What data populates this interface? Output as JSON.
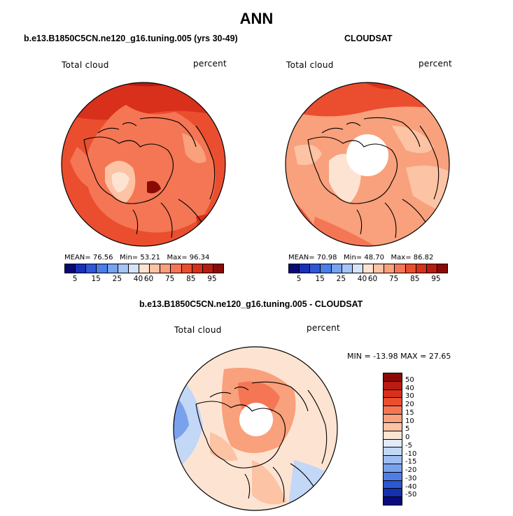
{
  "figure_title": "ANN",
  "panels": {
    "model": {
      "header": "b.e13.B1850C5CN.ne120_g16.tuning.005 (yrs 30-49)",
      "variable": "Total cloud",
      "units": "percent",
      "stats": {
        "mean_label": "MEAN=",
        "mean": "76.56",
        "min_label": "Min=",
        "min": "53.21",
        "max_label": "Max=",
        "max": "96.34"
      }
    },
    "obs": {
      "header": "CLOUDSAT",
      "variable": "Total cloud",
      "units": "percent",
      "stats": {
        "mean_label": "MEAN=",
        "mean": "70.98",
        "min_label": "Min=",
        "min": "48.70",
        "max_label": "Max=",
        "max": "86.82"
      }
    },
    "diff": {
      "header": "b.e13.B1850C5CN.ne120_g16.tuning.005 - CLOUDSAT",
      "variable": "Total cloud",
      "units": "percent",
      "minmax": "MIN = -13.98 MAX =  27.65"
    }
  },
  "abs_colorbar": {
    "tick_labels": [
      "5",
      "15",
      "25",
      "40",
      "60",
      "75",
      "85",
      "95"
    ],
    "colors": [
      "#08087a",
      "#1a2fb8",
      "#2e58d8",
      "#4a7ee8",
      "#77a3f0",
      "#a6c4f5",
      "#d4e4f9",
      "#fde4d2",
      "#fcc3a5",
      "#f9a07c",
      "#f47654",
      "#ea4e2f",
      "#d8301a",
      "#b81c10",
      "#8a0a06"
    ]
  },
  "diff_colorbar": {
    "tick_labels": [
      "50",
      "40",
      "30",
      "20",
      "15",
      "10",
      "5",
      "0",
      "-5",
      "-10",
      "-15",
      "-20",
      "-30",
      "-40",
      "-50"
    ],
    "colors": [
      "#8a0a06",
      "#b81c10",
      "#d8301a",
      "#ea4e2f",
      "#f47654",
      "#f9a07c",
      "#fcc3a5",
      "#fde4d2",
      "#e1ebfb",
      "#c3d7f7",
      "#9ebef2",
      "#7aa2ec",
      "#4f7de6",
      "#2c57d6",
      "#1530b0",
      "#0a0a80"
    ]
  },
  "chart_data": [
    {
      "type": "map",
      "title": "b.e13.B1850C5CN.ne120_g16.tuning.005 (yrs 30-49)",
      "variable": "Total cloud",
      "units": "percent",
      "mean": 76.56,
      "min": 53.21,
      "max": 96.34,
      "levels": [
        5,
        10,
        15,
        20,
        25,
        30,
        40,
        50,
        60,
        70,
        75,
        80,
        85,
        90,
        95
      ]
    },
    {
      "type": "map",
      "title": "CLOUDSAT",
      "variable": "Total cloud",
      "units": "percent",
      "mean": 70.98,
      "min": 48.7,
      "max": 86.82,
      "levels": [
        5,
        10,
        15,
        20,
        25,
        30,
        40,
        50,
        60,
        70,
        75,
        80,
        85,
        90,
        95
      ]
    },
    {
      "type": "map",
      "title": "b.e13.B1850C5CN.ne120_g16.tuning.005 - CLOUDSAT",
      "variable": "Total cloud",
      "units": "percent",
      "min": -13.98,
      "max": 27.65,
      "levels": [
        -50,
        -40,
        -30,
        -20,
        -15,
        -10,
        -5,
        0,
        5,
        10,
        15,
        20,
        30,
        40,
        50
      ]
    }
  ]
}
